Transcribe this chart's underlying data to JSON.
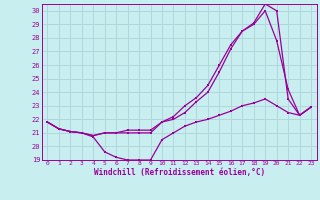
{
  "xlabel": "Windchill (Refroidissement éolien,°C)",
  "bg_color": "#c8eef0",
  "line_color": "#990099",
  "grid_color": "#b0d8dc",
  "xlim": [
    -0.5,
    23.5
  ],
  "ylim": [
    19,
    30.5
  ],
  "xticks": [
    0,
    1,
    2,
    3,
    4,
    5,
    6,
    7,
    8,
    9,
    10,
    11,
    12,
    13,
    14,
    15,
    16,
    17,
    18,
    19,
    20,
    21,
    22,
    23
  ],
  "yticks": [
    19,
    20,
    21,
    22,
    23,
    24,
    25,
    26,
    27,
    28,
    29,
    30
  ],
  "line1_x": [
    0,
    1,
    2,
    3,
    4,
    5,
    6,
    7,
    8,
    9,
    10,
    11,
    12,
    13,
    14,
    15,
    16,
    17,
    18,
    19,
    20,
    21,
    22,
    23
  ],
  "line1_y": [
    21.8,
    21.3,
    21.1,
    21.0,
    20.8,
    21.0,
    21.0,
    21.2,
    21.2,
    21.2,
    21.8,
    22.2,
    23.0,
    23.6,
    24.5,
    26.0,
    27.5,
    28.5,
    29.1,
    30.5,
    30.0,
    23.5,
    22.3,
    22.9
  ],
  "line2_x": [
    0,
    1,
    2,
    3,
    4,
    5,
    6,
    7,
    8,
    9,
    10,
    11,
    12,
    13,
    14,
    15,
    16,
    17,
    18,
    19,
    20,
    21,
    22,
    23
  ],
  "line2_y": [
    21.8,
    21.3,
    21.1,
    21.0,
    20.8,
    21.0,
    21.0,
    21.0,
    21.0,
    21.0,
    21.8,
    22.0,
    22.5,
    23.3,
    24.0,
    25.5,
    27.2,
    28.5,
    29.0,
    30.0,
    27.8,
    24.2,
    22.3,
    22.9
  ],
  "line3_x": [
    0,
    1,
    2,
    3,
    4,
    5,
    6,
    7,
    8,
    9,
    10,
    11,
    12,
    13,
    14,
    15,
    16,
    17,
    18,
    19,
    20,
    21,
    22,
    23
  ],
  "line3_y": [
    21.8,
    21.3,
    21.1,
    21.0,
    20.7,
    19.6,
    19.2,
    19.0,
    19.0,
    19.0,
    20.5,
    21.0,
    21.5,
    21.8,
    22.0,
    22.3,
    22.6,
    23.0,
    23.2,
    23.5,
    23.0,
    22.5,
    22.3,
    22.9
  ]
}
